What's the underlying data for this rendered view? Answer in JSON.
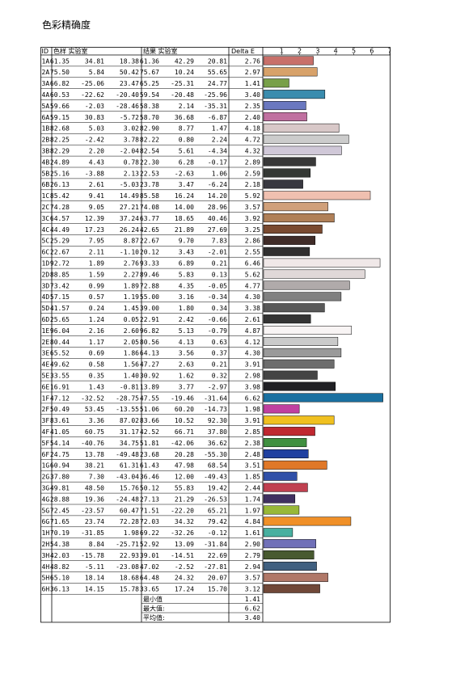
{
  "title": "色彩精确度",
  "headers": {
    "id": "ID",
    "sample": "色样 实验室",
    "result": "结果 实验室",
    "delta": "Delta E"
  },
  "summary": [
    {
      "label": "最小值",
      "value": "1.41"
    },
    {
      "label": "最大值:",
      "value": "6.62"
    },
    {
      "label": "平均值:",
      "value": "3.40"
    }
  ],
  "chart_data": {
    "type": "bar",
    "title": "",
    "xlabel": "",
    "ylabel": "",
    "xlim": [
      0,
      8
    ],
    "xticks": [
      "1",
      "2",
      "3",
      "4",
      "5",
      "6",
      "7"
    ],
    "categories": [
      "1A",
      "2A",
      "3A",
      "4A",
      "5A",
      "6A",
      "1B",
      "2B",
      "3B",
      "4B",
      "5B",
      "6B",
      "1C",
      "2C",
      "3C",
      "4C",
      "5C",
      "6C",
      "1D",
      "2D",
      "3D",
      "4D",
      "5D",
      "6D",
      "1E",
      "2E",
      "3E",
      "4E",
      "5E",
      "6E",
      "1F",
      "2F",
      "3F",
      "4F",
      "5F",
      "6F",
      "1G",
      "2G",
      "3G",
      "4G",
      "5G",
      "6G",
      "1H",
      "2H",
      "3H",
      "4H",
      "5H",
      "6H"
    ],
    "rows": [
      {
        "id": "1A",
        "s": [
          "61.35",
          "34.81",
          "18.38"
        ],
        "r": [
          "61.36",
          "42.29",
          "20.81"
        ],
        "d": "2.76",
        "v": 2.76,
        "c": "#c8706a"
      },
      {
        "id": "2A",
        "s": [
          "75.50",
          "5.84",
          "50.42"
        ],
        "r": [
          "75.67",
          "10.24",
          "55.65"
        ],
        "d": "2.97",
        "v": 2.97,
        "c": "#d8a26a"
      },
      {
        "id": "3A",
        "s": [
          "66.82",
          "-25.06",
          "23.47"
        ],
        "r": [
          "65.25",
          "-25.31",
          "24.77"
        ],
        "d": "1.41",
        "v": 1.41,
        "c": "#78a048"
      },
      {
        "id": "4A",
        "s": [
          "60.53",
          "-22.62",
          "-20.40"
        ],
        "r": [
          "59.54",
          "-20.48",
          "-25.96"
        ],
        "d": "3.40",
        "v": 3.4,
        "c": "#3a8cae"
      },
      {
        "id": "5A",
        "s": [
          "59.66",
          "-2.03",
          "-28.46"
        ],
        "r": [
          "58.38",
          "2.14",
          "-35.31"
        ],
        "d": "2.35",
        "v": 2.35,
        "c": "#6a78c0"
      },
      {
        "id": "6A",
        "s": [
          "59.15",
          "30.83",
          "-5.72"
        ],
        "r": [
          "58.70",
          "36.68",
          "-6.87"
        ],
        "d": "2.40",
        "v": 2.4,
        "c": "#c070a0"
      },
      {
        "id": "1B",
        "s": [
          "82.68",
          "5.03",
          "3.02"
        ],
        "r": [
          "82.90",
          "8.77",
          "1.47"
        ],
        "d": "4.18",
        "v": 4.18,
        "c": "#d8c8c8"
      },
      {
        "id": "2B",
        "s": [
          "82.25",
          "-2.42",
          "3.78"
        ],
        "r": [
          "82.22",
          "0.80",
          "2.24"
        ],
        "d": "4.72",
        "v": 4.72,
        "c": "#cccccc"
      },
      {
        "id": "3B",
        "s": [
          "82.29",
          "2.20",
          "-2.04"
        ],
        "r": [
          "82.54",
          "5.61",
          "-4.34"
        ],
        "d": "4.32",
        "v": 4.32,
        "c": "#d0c8d8"
      },
      {
        "id": "4B",
        "s": [
          "24.89",
          "4.43",
          "0.78"
        ],
        "r": [
          "22.30",
          "6.28",
          "-0.17"
        ],
        "d": "2.89",
        "v": 2.89,
        "c": "#383838"
      },
      {
        "id": "5B",
        "s": [
          "25.16",
          "-3.88",
          "2.13"
        ],
        "r": [
          "22.53",
          "-2.63",
          "1.06"
        ],
        "d": "2.59",
        "v": 2.59,
        "c": "#343834"
      },
      {
        "id": "6B",
        "s": [
          "26.13",
          "2.61",
          "-5.03"
        ],
        "r": [
          "23.78",
          "3.47",
          "-6.24"
        ],
        "d": "2.18",
        "v": 2.18,
        "c": "#383840"
      },
      {
        "id": "1C",
        "s": [
          "85.42",
          "9.41",
          "14.49"
        ],
        "r": [
          "85.58",
          "16.24",
          "14.20"
        ],
        "d": "5.92",
        "v": 5.92,
        "c": "#f0c0b0"
      },
      {
        "id": "2C",
        "s": [
          "74.28",
          "9.05",
          "27.21"
        ],
        "r": [
          "74.08",
          "14.00",
          "28.96"
        ],
        "d": "3.57",
        "v": 3.57,
        "c": "#d0a07a"
      },
      {
        "id": "3C",
        "s": [
          "64.57",
          "12.39",
          "37.24"
        ],
        "r": [
          "63.77",
          "18.65",
          "40.46"
        ],
        "d": "3.92",
        "v": 3.92,
        "c": "#b08058"
      },
      {
        "id": "4C",
        "s": [
          "44.49",
          "17.23",
          "26.24"
        ],
        "r": [
          "42.65",
          "21.89",
          "27.69"
        ],
        "d": "3.25",
        "v": 3.25,
        "c": "#7a4a30"
      },
      {
        "id": "5C",
        "s": [
          "25.29",
          "7.95",
          "8.87"
        ],
        "r": [
          "22.67",
          "9.70",
          "7.83"
        ],
        "d": "2.86",
        "v": 2.86,
        "c": "#402c28"
      },
      {
        "id": "6C",
        "s": [
          "22.67",
          "2.11",
          "-1.10"
        ],
        "r": [
          "20.12",
          "3.43",
          "-2.01"
        ],
        "d": "2.55",
        "v": 2.55,
        "c": "#303030"
      },
      {
        "id": "1D",
        "s": [
          "92.72",
          "1.89",
          "2.76"
        ],
        "r": [
          "93.33",
          "6.89",
          "0.21"
        ],
        "d": "6.46",
        "v": 6.46,
        "c": "#f0e8e8"
      },
      {
        "id": "2D",
        "s": [
          "88.85",
          "1.59",
          "2.27"
        ],
        "r": [
          "89.46",
          "5.83",
          "0.13"
        ],
        "d": "5.62",
        "v": 5.62,
        "c": "#e0d8d8"
      },
      {
        "id": "3D",
        "s": [
          "73.42",
          "0.99",
          "1.89"
        ],
        "r": [
          "72.88",
          "4.35",
          "-0.05"
        ],
        "d": "4.77",
        "v": 4.77,
        "c": "#b0aaaa"
      },
      {
        "id": "4D",
        "s": [
          "57.15",
          "0.57",
          "1.19"
        ],
        "r": [
          "55.00",
          "3.16",
          "-0.34"
        ],
        "d": "4.30",
        "v": 4.3,
        "c": "#808080"
      },
      {
        "id": "5D",
        "s": [
          "41.57",
          "0.24",
          "1.45"
        ],
        "r": [
          "39.00",
          "1.80",
          "0.34"
        ],
        "d": "3.38",
        "v": 3.38,
        "c": "#585858"
      },
      {
        "id": "6D",
        "s": [
          "25.65",
          "1.24",
          "0.05"
        ],
        "r": [
          "22.91",
          "2.42",
          "-0.66"
        ],
        "d": "2.61",
        "v": 2.61,
        "c": "#343434"
      },
      {
        "id": "1E",
        "s": [
          "96.04",
          "2.16",
          "2.60"
        ],
        "r": [
          "96.82",
          "5.13",
          "-0.79"
        ],
        "d": "4.87",
        "v": 4.87,
        "c": "#f8f4f4"
      },
      {
        "id": "2E",
        "s": [
          "80.44",
          "1.17",
          "2.05"
        ],
        "r": [
          "80.56",
          "4.13",
          "0.63"
        ],
        "d": "4.12",
        "v": 4.12,
        "c": "#cacaca"
      },
      {
        "id": "3E",
        "s": [
          "65.52",
          "0.69",
          "1.86"
        ],
        "r": [
          "64.13",
          "3.56",
          "0.37"
        ],
        "d": "4.30",
        "v": 4.3,
        "c": "#9a9a9a"
      },
      {
        "id": "4E",
        "s": [
          "49.62",
          "0.58",
          "1.56"
        ],
        "r": [
          "47.27",
          "2.63",
          "0.21"
        ],
        "d": "3.91",
        "v": 3.91,
        "c": "#6c6c6c"
      },
      {
        "id": "5E",
        "s": [
          "33.55",
          "0.35",
          "1.40"
        ],
        "r": [
          "30.92",
          "1.62",
          "0.32"
        ],
        "d": "2.98",
        "v": 2.98,
        "c": "#444444"
      },
      {
        "id": "6E",
        "s": [
          "16.91",
          "1.43",
          "-0.81"
        ],
        "r": [
          "13.89",
          "3.77",
          "-2.97"
        ],
        "d": "3.98",
        "v": 3.98,
        "c": "#202024"
      },
      {
        "id": "1F",
        "s": [
          "47.12",
          "-32.52",
          "-28.75"
        ],
        "r": [
          "47.55",
          "-19.46",
          "-31.64"
        ],
        "d": "6.62",
        "v": 6.62,
        "c": "#1a70a0"
      },
      {
        "id": "2F",
        "s": [
          "50.49",
          "53.45",
          "-13.55"
        ],
        "r": [
          "51.06",
          "60.20",
          "-14.73"
        ],
        "d": "1.98",
        "v": 1.98,
        "c": "#c040a0"
      },
      {
        "id": "3F",
        "s": [
          "83.61",
          "3.36",
          "87.02"
        ],
        "r": [
          "83.66",
          "10.52",
          "92.30"
        ],
        "d": "3.91",
        "v": 3.91,
        "c": "#f0c020"
      },
      {
        "id": "4F",
        "s": [
          "41.05",
          "60.75",
          "31.17"
        ],
        "r": [
          "42.52",
          "66.71",
          "37.80"
        ],
        "d": "2.85",
        "v": 2.85,
        "c": "#c02830"
      },
      {
        "id": "5F",
        "s": [
          "54.14",
          "-40.76",
          "34.75"
        ],
        "r": [
          "51.81",
          "-42.06",
          "36.62"
        ],
        "d": "2.38",
        "v": 2.38,
        "c": "#409040"
      },
      {
        "id": "6F",
        "s": [
          "24.75",
          "13.78",
          "-49.48"
        ],
        "r": [
          "23.68",
          "20.28",
          "-55.30"
        ],
        "d": "2.48",
        "v": 2.48,
        "c": "#2040a0"
      },
      {
        "id": "1G",
        "s": [
          "60.94",
          "38.21",
          "61.31"
        ],
        "r": [
          "61.43",
          "47.98",
          "68.54"
        ],
        "d": "3.51",
        "v": 3.51,
        "c": "#e07828"
      },
      {
        "id": "2G",
        "s": [
          "37.80",
          "7.30",
          "-43.04"
        ],
        "r": [
          "36.46",
          "12.00",
          "-49.43"
        ],
        "d": "1.85",
        "v": 1.85,
        "c": "#3050a8"
      },
      {
        "id": "3G",
        "s": [
          "49.81",
          "48.50",
          "15.76"
        ],
        "r": [
          "50.12",
          "55.83",
          "19.42"
        ],
        "d": "2.44",
        "v": 2.44,
        "c": "#c04050"
      },
      {
        "id": "4G",
        "s": [
          "28.88",
          "19.36",
          "-24.48"
        ],
        "r": [
          "27.13",
          "21.29",
          "-26.53"
        ],
        "d": "1.74",
        "v": 1.74,
        "c": "#403060"
      },
      {
        "id": "5G",
        "s": [
          "72.45",
          "-23.57",
          "60.47"
        ],
        "r": [
          "71.51",
          "-22.20",
          "65.21"
        ],
        "d": "1.97",
        "v": 1.97,
        "c": "#98b838"
      },
      {
        "id": "6G",
        "s": [
          "71.65",
          "23.74",
          "72.28"
        ],
        "r": [
          "72.03",
          "34.32",
          "79.42"
        ],
        "d": "4.84",
        "v": 4.84,
        "c": "#f09028"
      },
      {
        "id": "1H",
        "s": [
          "70.19",
          "-31.85",
          "1.98"
        ],
        "r": [
          "69.22",
          "-32.26",
          "-0.12"
        ],
        "d": "1.61",
        "v": 1.61,
        "c": "#48b0a0"
      },
      {
        "id": "2H",
        "s": [
          "54.38",
          "8.84",
          "-25.71"
        ],
        "r": [
          "52.92",
          "13.09",
          "-31.84"
        ],
        "d": "2.90",
        "v": 2.9,
        "c": "#7070b8"
      },
      {
        "id": "3H",
        "s": [
          "42.03",
          "-15.78",
          "22.93"
        ],
        "r": [
          "39.01",
          "-14.51",
          "22.69"
        ],
        "d": "2.79",
        "v": 2.79,
        "c": "#485a30"
      },
      {
        "id": "4H",
        "s": [
          "48.82",
          "-5.11",
          "-23.08"
        ],
        "r": [
          "47.02",
          "-2.52",
          "-27.81"
        ],
        "d": "2.94",
        "v": 2.94,
        "c": "#406080"
      },
      {
        "id": "5H",
        "s": [
          "65.10",
          "18.14",
          "18.68"
        ],
        "r": [
          "64.48",
          "24.32",
          "20.07"
        ],
        "d": "3.57",
        "v": 3.57,
        "c": "#b07868"
      },
      {
        "id": "6H",
        "s": [
          "36.13",
          "14.15",
          "15.78"
        ],
        "r": [
          "33.65",
          "17.24",
          "15.70"
        ],
        "d": "3.12",
        "v": 3.12,
        "c": "#704838"
      }
    ]
  }
}
